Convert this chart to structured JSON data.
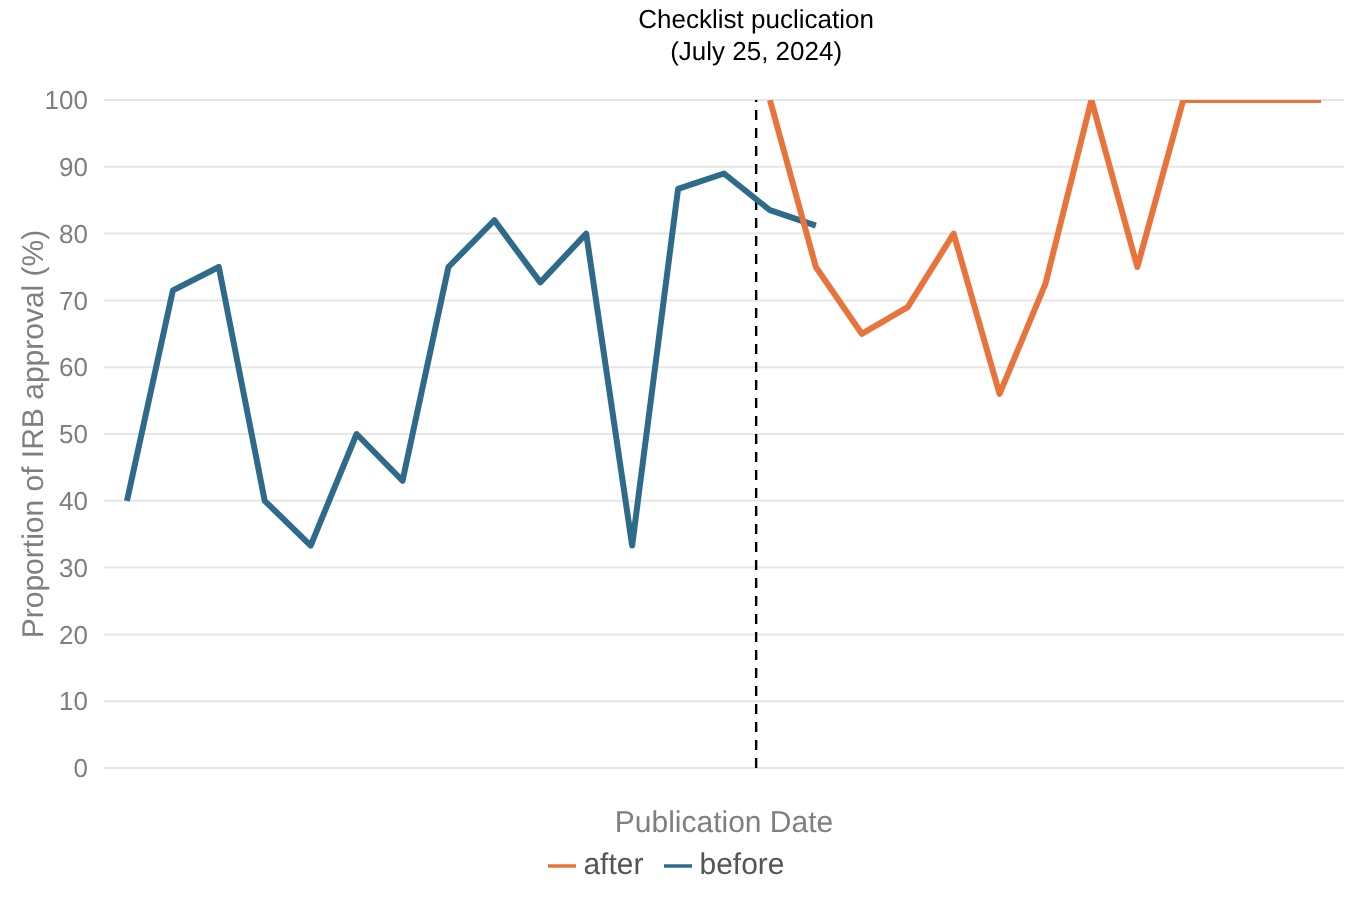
{
  "chart_data": {
    "type": "line",
    "categories": [
      null,
      null,
      null,
      null,
      null,
      null,
      null,
      null,
      null,
      null,
      null,
      null,
      null,
      null,
      null,
      null,
      null,
      null,
      null,
      null,
      null,
      null,
      null,
      null,
      null,
      null,
      null
    ],
    "series": [
      {
        "name": "before",
        "color": "#2e6b8a",
        "values": [
          40,
          71.5,
          75,
          40,
          33.3,
          50,
          43,
          75,
          82,
          72.7,
          80,
          33.3,
          86.7,
          89,
          83.5,
          81.2,
          null,
          null,
          null,
          null,
          null,
          null,
          null,
          null,
          null,
          null,
          null
        ]
      },
      {
        "name": "after",
        "color": "#e8743b",
        "values": [
          null,
          null,
          null,
          null,
          null,
          null,
          null,
          null,
          null,
          null,
          null,
          null,
          null,
          null,
          100,
          75,
          65,
          69,
          80,
          56,
          72.5,
          100,
          75,
          100,
          100,
          100,
          100
        ]
      }
    ],
    "ylabel": "Proportion of IRB approval (%)",
    "xlabel": "Publication Date",
    "ylim": [
      0,
      100
    ],
    "yticks": [
      0,
      10,
      20,
      30,
      40,
      50,
      60,
      70,
      80,
      90,
      100
    ],
    "annotations": [
      "Checklist puclication\n(July 25, 2024)"
    ],
    "grid": "y",
    "legend": "bottom",
    "marker": "none",
    "line_style": "solid",
    "tick_labels": "y"
  }
}
